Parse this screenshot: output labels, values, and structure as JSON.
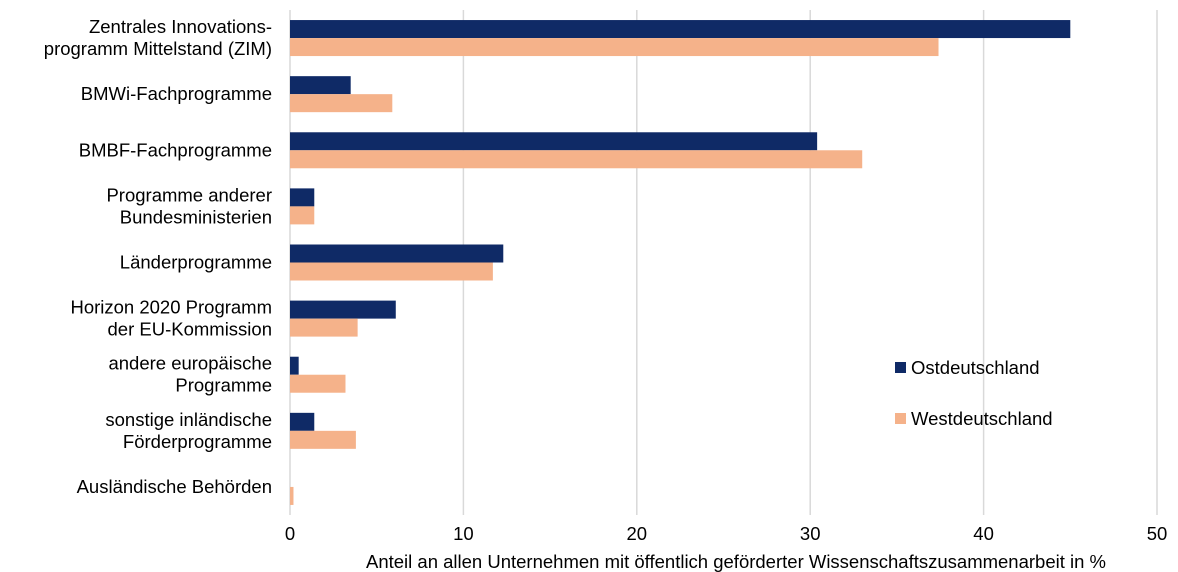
{
  "chart_data": {
    "type": "bar",
    "orientation": "horizontal",
    "categories": [
      [
        "Zentrales Innovations-",
        "programm Mittelstand (ZIM)"
      ],
      [
        "BMWi-Fachprogramme"
      ],
      [
        "BMBF-Fachprogramme"
      ],
      [
        "Programme anderer",
        "Bundesministerien"
      ],
      [
        "Länderprogramme"
      ],
      [
        "Horizon 2020 Programm",
        "der EU-Kommission"
      ],
      [
        "andere europäische",
        "Programme"
      ],
      [
        "sonstige inländische",
        "Förderprogramme"
      ],
      [
        "Ausländische Behörden"
      ]
    ],
    "series": [
      {
        "name": "Ostdeutschland",
        "color": "#0f2a66",
        "values": [
          45.0,
          3.5,
          30.4,
          1.4,
          12.3,
          6.1,
          0.5,
          1.4,
          0
        ]
      },
      {
        "name": "Westdeutschland",
        "color": "#f5b28a",
        "values": [
          37.4,
          5.9,
          33.0,
          1.4,
          11.7,
          3.9,
          3.2,
          3.8,
          0.2
        ]
      }
    ],
    "xlabel": "Anteil an allen Unternehmen mit öffentlich geförderter Wissenschaftszusammenarbeit in %",
    "ylabel": "",
    "xlim": [
      0,
      50
    ],
    "xticks": [
      0,
      10,
      20,
      30,
      40,
      50
    ],
    "grid": true,
    "legend_position": "right"
  }
}
